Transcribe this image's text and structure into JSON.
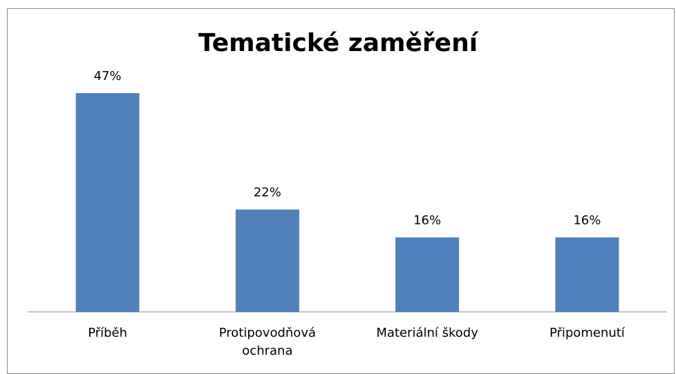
{
  "chart_data": {
    "type": "bar",
    "title": "Tematické zaměření",
    "categories": [
      "Příběh",
      "Protipovodňová ochrana",
      "Materiální škody",
      "Připomenutí"
    ],
    "values": [
      47,
      22,
      16,
      16
    ],
    "value_labels": [
      "47%",
      "22%",
      "16%",
      "16%"
    ],
    "color": "#4f81bd"
  }
}
